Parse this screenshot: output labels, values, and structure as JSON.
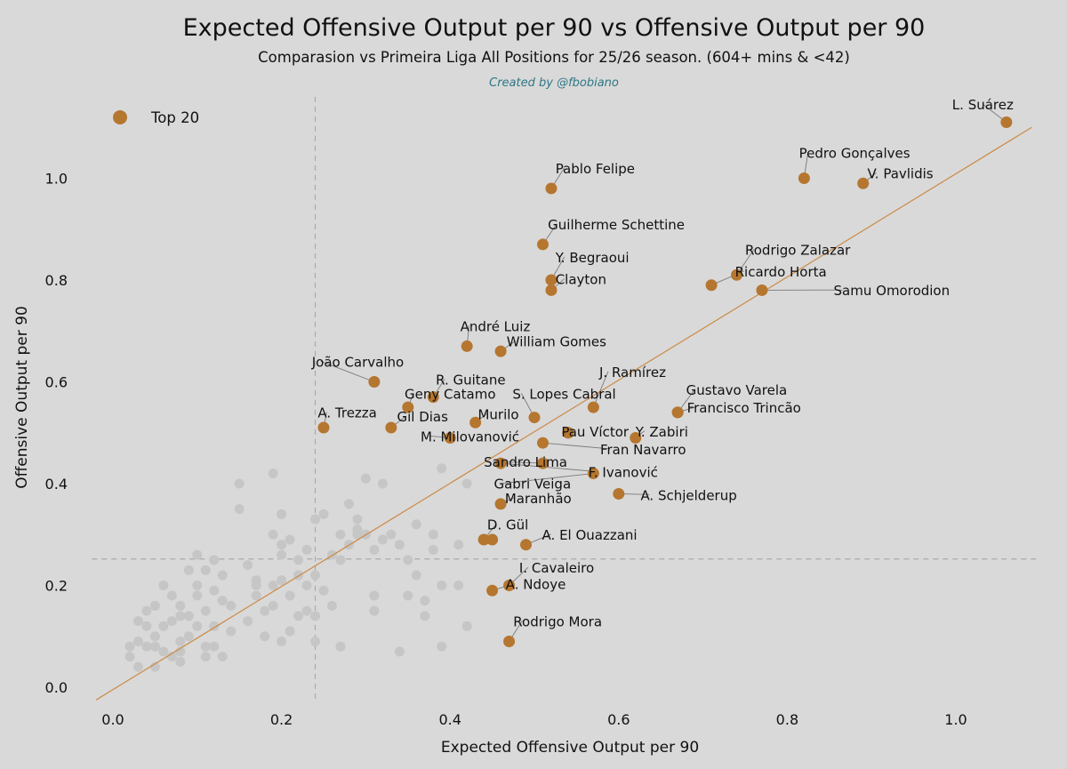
{
  "title": "Expected Offensive Output per 90 vs Offensive Output per 90",
  "subtitle": "Comparasion vs Primeira Liga All Positions for 25/26 season. (604+ mins & <42)",
  "credit": "Created by @fbobiano",
  "colors": {
    "background": "#d9d9d9",
    "highlight": "#b5762f",
    "others": "#c6c6c6",
    "trendline": "#cc8a45",
    "leader": "#7a7a7a",
    "reference": "#aaaaaa",
    "credit": "#2e7785"
  },
  "legend": {
    "label": "Top 20",
    "position": "top-left"
  },
  "chart_data": {
    "type": "scatter",
    "xlabel": "Expected Offensive Output per 90",
    "ylabel": "Offensive Output per 90",
    "xlim": [
      -0.025,
      1.1
    ],
    "ylim": [
      -0.025,
      1.16
    ],
    "xticks": [
      "0.0",
      "0.2",
      "0.4",
      "0.6",
      "0.8",
      "1.0"
    ],
    "yticks": [
      "0.0",
      "0.2",
      "0.4",
      "0.6",
      "0.8",
      "1.0"
    ],
    "grid": false,
    "reference_lines": {
      "x_avg": 0.24,
      "y_avg": 0.252
    },
    "trendline": {
      "x": [
        -0.02,
        1.09
      ],
      "y": [
        -0.025,
        1.1
      ]
    },
    "highlighted": [
      {
        "name": "L. Suárez",
        "x": 1.06,
        "y": 1.11,
        "lx": 1.032,
        "ly": 1.135,
        "anchor": "middle"
      },
      {
        "name": "Pedro Gonçalves",
        "x": 0.82,
        "y": 1.0,
        "lx": 0.814,
        "ly": 1.04,
        "anchor": "start"
      },
      {
        "name": "V. Pavlidis",
        "x": 0.89,
        "y": 0.99,
        "lx": 0.895,
        "ly": 1.0,
        "anchor": "start"
      },
      {
        "name": "Pablo Felipe",
        "x": 0.52,
        "y": 0.98,
        "lx": 0.525,
        "ly": 1.01,
        "anchor": "start"
      },
      {
        "name": "Guilherme Schettine",
        "x": 0.51,
        "y": 0.87,
        "lx": 0.516,
        "ly": 0.9,
        "anchor": "start"
      },
      {
        "name": "Rodrigo Zalazar",
        "x": 0.74,
        "y": 0.81,
        "lx": 0.75,
        "ly": 0.85,
        "anchor": "start"
      },
      {
        "name": "Y. Begraoui",
        "x": 0.52,
        "y": 0.8,
        "lx": 0.525,
        "ly": 0.835,
        "anchor": "start"
      },
      {
        "name": "Ricardo Horta",
        "x": 0.71,
        "y": 0.79,
        "lx": 0.738,
        "ly": 0.807,
        "anchor": "start"
      },
      {
        "name": "Clayton",
        "x": 0.52,
        "y": 0.78,
        "lx": 0.525,
        "ly": 0.792,
        "anchor": "start"
      },
      {
        "name": "Samu Omorodion",
        "x": 0.77,
        "y": 0.78,
        "lx": 0.855,
        "ly": 0.77,
        "anchor": "start"
      },
      {
        "name": "André Luiz",
        "x": 0.42,
        "y": 0.67,
        "lx": 0.412,
        "ly": 0.7,
        "anchor": "start"
      },
      {
        "name": "William Gomes",
        "x": 0.46,
        "y": 0.66,
        "lx": 0.467,
        "ly": 0.67,
        "anchor": "start"
      },
      {
        "name": "João Carvalho",
        "x": 0.31,
        "y": 0.6,
        "lx": 0.236,
        "ly": 0.63,
        "anchor": "start"
      },
      {
        "name": "R. Guitane",
        "x": 0.38,
        "y": 0.57,
        "lx": 0.383,
        "ly": 0.595,
        "anchor": "start"
      },
      {
        "name": "J. Ramírez",
        "x": 0.57,
        "y": 0.55,
        "lx": 0.577,
        "ly": 0.61,
        "anchor": "start"
      },
      {
        "name": "Geny Catamo",
        "x": 0.35,
        "y": 0.55,
        "lx": 0.346,
        "ly": 0.567,
        "anchor": "start"
      },
      {
        "name": "S. Lopes Cabral",
        "x": 0.5,
        "y": 0.53,
        "lx": 0.474,
        "ly": 0.567,
        "anchor": "start"
      },
      {
        "name": "Gustavo Varela",
        "x": 0.67,
        "y": 0.54,
        "lx": 0.68,
        "ly": 0.575,
        "anchor": "start"
      },
      {
        "name": "Francisco Trincão",
        "x": 0.67,
        "y": 0.54,
        "lx": 0.681,
        "ly": 0.54,
        "anchor": "start"
      },
      {
        "name": "A. Trezza",
        "x": 0.25,
        "y": 0.51,
        "lx": 0.243,
        "ly": 0.53,
        "anchor": "start"
      },
      {
        "name": "Gil Dias",
        "x": 0.33,
        "y": 0.51,
        "lx": 0.337,
        "ly": 0.522,
        "anchor": "start"
      },
      {
        "name": "Murilo",
        "x": 0.43,
        "y": 0.52,
        "lx": 0.433,
        "ly": 0.527,
        "anchor": "start"
      },
      {
        "name": "Pau Víctor",
        "x": 0.54,
        "y": 0.5,
        "lx": 0.532,
        "ly": 0.493,
        "anchor": "start"
      },
      {
        "name": "Y. Zabiri",
        "x": 0.62,
        "y": 0.49,
        "lx": 0.62,
        "ly": 0.493,
        "anchor": "start"
      },
      {
        "name": "M. Milovanović",
        "x": 0.4,
        "y": 0.49,
        "lx": 0.365,
        "ly": 0.483,
        "anchor": "start"
      },
      {
        "name": "Fran Navarro",
        "x": 0.51,
        "y": 0.48,
        "lx": 0.578,
        "ly": 0.458,
        "anchor": "start"
      },
      {
        "name": "Sandro Lima",
        "x": 0.51,
        "y": 0.44,
        "lx": 0.44,
        "ly": 0.433,
        "anchor": "start"
      },
      {
        "name": "F. Ivanović",
        "x": 0.46,
        "y": 0.44,
        "lx": 0.564,
        "ly": 0.413,
        "anchor": "start"
      },
      {
        "name": "Gabri Veiga",
        "x": 0.57,
        "y": 0.42,
        "lx": 0.452,
        "ly": 0.39,
        "anchor": "start"
      },
      {
        "name": "A. Schjelderup",
        "x": 0.6,
        "y": 0.38,
        "lx": 0.626,
        "ly": 0.368,
        "anchor": "start"
      },
      {
        "name": "Maranhão",
        "x": 0.46,
        "y": 0.36,
        "lx": 0.465,
        "ly": 0.362,
        "anchor": "start"
      },
      {
        "name": "D. Gül",
        "x": 0.44,
        "y": 0.29,
        "lx": 0.444,
        "ly": 0.31,
        "anchor": "start"
      },
      {
        "name": "A. El Ouazzani",
        "x": 0.49,
        "y": 0.28,
        "lx": 0.509,
        "ly": 0.29,
        "anchor": "start"
      },
      {
        "name": "I. Cavaleiro",
        "x": 0.47,
        "y": 0.2,
        "lx": 0.482,
        "ly": 0.225,
        "anchor": "start"
      },
      {
        "name": "A. Ndoye",
        "x": 0.45,
        "y": 0.19,
        "lx": 0.466,
        "ly": 0.193,
        "anchor": "start"
      },
      {
        "name": "Rodrigo Mora",
        "x": 0.47,
        "y": 0.09,
        "lx": 0.475,
        "ly": 0.12,
        "anchor": "start"
      },
      {
        "name": "",
        "x": 0.45,
        "y": 0.29
      },
      {
        "name": "",
        "x": 0.54,
        "y": 0.5
      }
    ],
    "others": [
      [
        0.02,
        0.08
      ],
      [
        0.02,
        0.06
      ],
      [
        0.03,
        0.04
      ],
      [
        0.03,
        0.13
      ],
      [
        0.03,
        0.09
      ],
      [
        0.04,
        0.08
      ],
      [
        0.04,
        0.12
      ],
      [
        0.04,
        0.15
      ],
      [
        0.05,
        0.16
      ],
      [
        0.05,
        0.04
      ],
      [
        0.05,
        0.1
      ],
      [
        0.05,
        0.16
      ],
      [
        0.05,
        0.08
      ],
      [
        0.06,
        0.2
      ],
      [
        0.06,
        0.07
      ],
      [
        0.06,
        0.12
      ],
      [
        0.07,
        0.06
      ],
      [
        0.07,
        0.18
      ],
      [
        0.07,
        0.13
      ],
      [
        0.08,
        0.05
      ],
      [
        0.08,
        0.09
      ],
      [
        0.08,
        0.14
      ],
      [
        0.08,
        0.16
      ],
      [
        0.08,
        0.07
      ],
      [
        0.09,
        0.23
      ],
      [
        0.09,
        0.1
      ],
      [
        0.09,
        0.14
      ],
      [
        0.1,
        0.26
      ],
      [
        0.1,
        0.12
      ],
      [
        0.1,
        0.2
      ],
      [
        0.1,
        0.18
      ],
      [
        0.11,
        0.08
      ],
      [
        0.11,
        0.06
      ],
      [
        0.11,
        0.23
      ],
      [
        0.11,
        0.15
      ],
      [
        0.12,
        0.25
      ],
      [
        0.12,
        0.12
      ],
      [
        0.12,
        0.19
      ],
      [
        0.12,
        0.08
      ],
      [
        0.13,
        0.22
      ],
      [
        0.13,
        0.17
      ],
      [
        0.13,
        0.06
      ],
      [
        0.14,
        0.16
      ],
      [
        0.14,
        0.11
      ],
      [
        0.15,
        0.4
      ],
      [
        0.15,
        0.35
      ],
      [
        0.16,
        0.24
      ],
      [
        0.16,
        0.13
      ],
      [
        0.17,
        0.21
      ],
      [
        0.17,
        0.2
      ],
      [
        0.17,
        0.18
      ],
      [
        0.18,
        0.15
      ],
      [
        0.18,
        0.1
      ],
      [
        0.19,
        0.42
      ],
      [
        0.19,
        0.3
      ],
      [
        0.19,
        0.2
      ],
      [
        0.19,
        0.16
      ],
      [
        0.2,
        0.34
      ],
      [
        0.2,
        0.26
      ],
      [
        0.2,
        0.28
      ],
      [
        0.2,
        0.21
      ],
      [
        0.2,
        0.09
      ],
      [
        0.21,
        0.29
      ],
      [
        0.21,
        0.18
      ],
      [
        0.22,
        0.25
      ],
      [
        0.22,
        0.14
      ],
      [
        0.23,
        0.27
      ],
      [
        0.23,
        0.2
      ],
      [
        0.24,
        0.33
      ],
      [
        0.24,
        0.22
      ],
      [
        0.24,
        0.09
      ],
      [
        0.25,
        0.34
      ],
      [
        0.25,
        0.19
      ],
      [
        0.26,
        0.16
      ],
      [
        0.27,
        0.3
      ],
      [
        0.27,
        0.08
      ],
      [
        0.28,
        0.28
      ],
      [
        0.29,
        0.33
      ],
      [
        0.29,
        0.31
      ],
      [
        0.3,
        0.41
      ],
      [
        0.3,
        0.3
      ],
      [
        0.31,
        0.27
      ],
      [
        0.32,
        0.4
      ],
      [
        0.32,
        0.29
      ],
      [
        0.33,
        0.3
      ],
      [
        0.34,
        0.28
      ],
      [
        0.34,
        0.07
      ],
      [
        0.35,
        0.25
      ],
      [
        0.36,
        0.32
      ],
      [
        0.36,
        0.22
      ],
      [
        0.37,
        0.17
      ],
      [
        0.37,
        0.14
      ],
      [
        0.38,
        0.3
      ],
      [
        0.38,
        0.27
      ],
      [
        0.39,
        0.43
      ],
      [
        0.39,
        0.2
      ],
      [
        0.41,
        0.28
      ],
      [
        0.41,
        0.2
      ],
      [
        0.42,
        0.4
      ],
      [
        0.42,
        0.12
      ],
      [
        0.31,
        0.18
      ],
      [
        0.31,
        0.15
      ],
      [
        0.35,
        0.18
      ],
      [
        0.39,
        0.08
      ],
      [
        0.21,
        0.11
      ],
      [
        0.22,
        0.22
      ],
      [
        0.23,
        0.15
      ],
      [
        0.24,
        0.14
      ],
      [
        0.26,
        0.26
      ],
      [
        0.27,
        0.25
      ],
      [
        0.28,
        0.36
      ],
      [
        0.29,
        0.3
      ]
    ]
  }
}
